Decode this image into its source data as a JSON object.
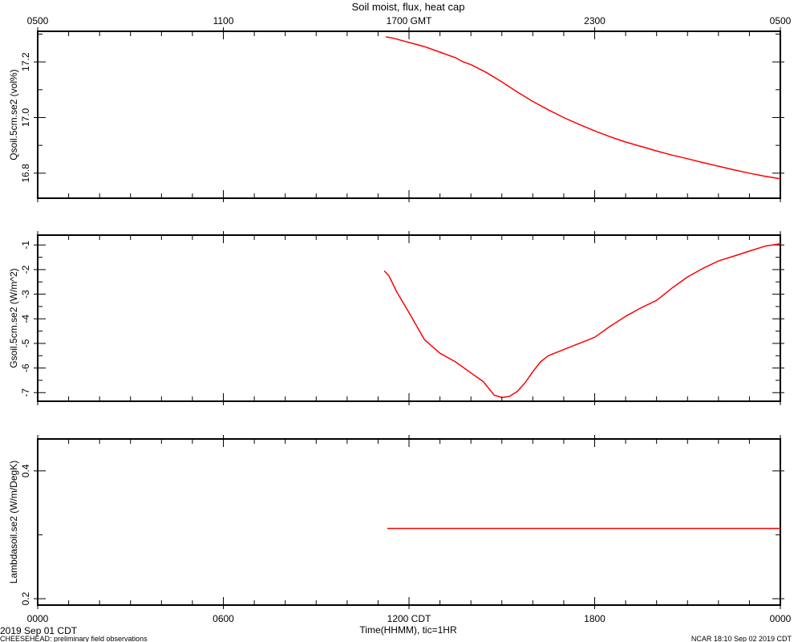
{
  "chart_data": {
    "type": "line",
    "title": "Soil moist, flux, heat cap",
    "top_axis": {
      "suffix": "GMT",
      "ticks": [
        {
          "h": 0,
          "label": "0500"
        },
        {
          "h": 6,
          "label": "1100"
        },
        {
          "h": 12,
          "label": "1700"
        },
        {
          "h": 18,
          "label": "2300"
        },
        {
          "h": 24,
          "label": "0500"
        }
      ]
    },
    "bottom_axis": {
      "suffix": "CDT",
      "ticks": [
        {
          "h": 0,
          "label": "0000"
        },
        {
          "h": 6,
          "label": "0600"
        },
        {
          "h": 12,
          "label": "1200"
        },
        {
          "h": 18,
          "label": "1800"
        },
        {
          "h": 24,
          "label": "0000"
        }
      ]
    },
    "xlabel": "Time(HHMM), tic=1HR",
    "xlim": [
      0,
      24
    ],
    "footer": {
      "date": "2019 Sep 01 CDT",
      "note": "CHEESEHEAD: preliminary field observations",
      "credit": "NCAR 18:10 Sep 02 2019 CDT"
    },
    "panels": [
      {
        "ylabel": "Qsoil.5cm.se2 (vol%)",
        "ylim": [
          16.71,
          17.31
        ],
        "yticks": [
          16.8,
          17.0,
          17.2
        ],
        "ytick_labels": [
          "16.8",
          "17.0",
          "17.2"
        ],
        "series": [
          {
            "color": "#ff0000",
            "x": [
              11.25,
              11.5,
              12.0,
              12.5,
              13.0,
              13.5,
              13.75,
              14.0,
              14.5,
              15.0,
              15.5,
              16.0,
              16.5,
              17.0,
              17.5,
              18.0,
              18.5,
              19.0,
              19.5,
              20.0,
              20.5,
              21.0,
              21.5,
              22.0,
              22.5,
              23.0,
              23.5,
              24.0
            ],
            "y": [
              17.29,
              17.285,
              17.27,
              17.255,
              17.235,
              17.215,
              17.2,
              17.19,
              17.162,
              17.128,
              17.092,
              17.058,
              17.028,
              17.0,
              16.975,
              16.952,
              16.931,
              16.912,
              16.896,
              16.88,
              16.865,
              16.852,
              16.838,
              16.825,
              16.812,
              16.8,
              16.789,
              16.78
            ]
          }
        ]
      },
      {
        "ylabel": "Gsoil.5cm.se2 (W/m^2)",
        "ylim": [
          -7.35,
          -0.6
        ],
        "yticks": [
          -7,
          -6,
          -5,
          -4,
          -3,
          -2,
          -1
        ],
        "ytick_labels": [
          "-7",
          "-6",
          "-5",
          "-4",
          "-3",
          "-2",
          "-1"
        ],
        "series": [
          {
            "color": "#ff0000",
            "x": [
              11.2,
              11.35,
              11.6,
              12.0,
              12.5,
              13.0,
              13.5,
              14.0,
              14.4,
              14.75,
              15.0,
              15.25,
              15.5,
              15.75,
              16.0,
              16.25,
              16.5,
              17.0,
              17.5,
              18.0,
              18.5,
              19.0,
              19.5,
              20.0,
              20.5,
              21.0,
              21.5,
              22.0,
              22.5,
              23.0,
              23.5,
              24.0
            ],
            "y": [
              -2.05,
              -2.25,
              -2.9,
              -3.75,
              -4.85,
              -5.4,
              -5.75,
              -6.2,
              -6.55,
              -7.1,
              -7.2,
              -7.15,
              -6.95,
              -6.6,
              -6.15,
              -5.75,
              -5.5,
              -5.25,
              -5.0,
              -4.75,
              -4.3,
              -3.9,
              -3.55,
              -3.25,
              -2.75,
              -2.3,
              -1.95,
              -1.65,
              -1.45,
              -1.25,
              -1.05,
              -0.95
            ]
          }
        ]
      },
      {
        "ylabel": "Lambdasoil.se2 (W/m/DegK)",
        "ylim": [
          0.19,
          0.45
        ],
        "yticks": [
          0.2,
          0.4
        ],
        "ytick_labels": [
          "0.2",
          "0.4"
        ],
        "series": [
          {
            "color": "#ff0000",
            "x": [
              11.3,
              24.0
            ],
            "y": [
              0.31,
              0.31
            ]
          }
        ]
      }
    ]
  }
}
